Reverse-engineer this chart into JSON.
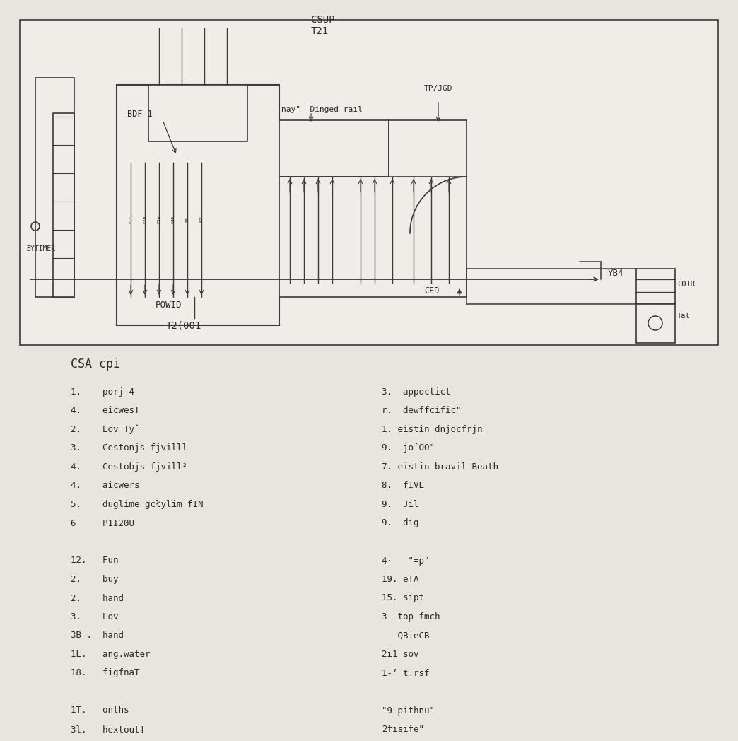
{
  "bg_color": "#e8e5df",
  "diagram_bg": "#f5f3ef",
  "line_color": "#3a3a3a",
  "text_color": "#2a2a2a",
  "figsize": [
    10.24,
    10.24
  ],
  "dpi": 100,
  "diagram_labels": {
    "csup": "CSUP\nT21",
    "bdf1": "BDF 1",
    "nay": "nay\"  Dinged raıl",
    "tp_jgd": "TP/JGD",
    "vb4": "ΥB4",
    "ced": "CED",
    "bytimer": "BYTIMER",
    "powid": "POWID",
    "t2001": "T2(001",
    "cotr": "COTR",
    "tal": "Tal"
  },
  "pinout_title": "CSA cpi",
  "left_pins": [
    "1.    porj 4",
    "4.    eicwesT",
    "2.    Lov Tyˆ",
    "3.    Cestonjs fjvilll",
    "4.    Cestobjs fjvill²",
    "4.    aicwers",
    "5.    duglime gcłylim fIN",
    "6     P1I20U",
    "",
    "12.   Fun",
    "2.    buy",
    "2.    hand",
    "3.    Lov",
    "3B .  hand",
    "1L.   ang.water",
    "18.   figfnaT",
    "",
    "1T.   onths",
    "3l.   hextout†"
  ],
  "right_pins": [
    "3.  appoctict",
    "r.  dewffcific\"",
    "1. eistin dnjocfrjn",
    "9.  jo´OO\"",
    "7. eistin bravil Beath",
    "8.  fIVL",
    "9.  Jil",
    "9.  dig",
    "",
    "4·   \"=p\"",
    "19. eTA",
    "15. sipt",
    "3— top fmch",
    "   QBieCB",
    "2i1 sov",
    "1-’ t.rsf",
    "",
    "\"9 pithnu\"",
    "2fisife\""
  ]
}
